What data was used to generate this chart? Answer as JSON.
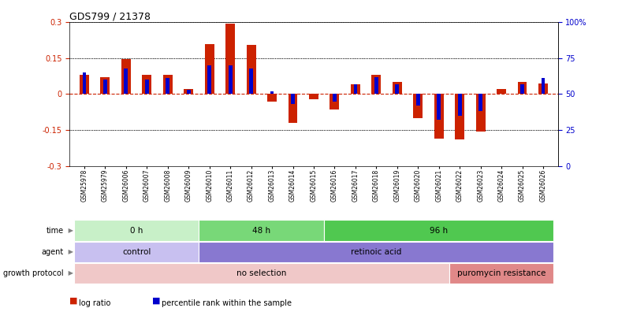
{
  "title": "GDS799 / 21378",
  "samples": [
    "GSM25978",
    "GSM25979",
    "GSM26006",
    "GSM26007",
    "GSM26008",
    "GSM26009",
    "GSM26010",
    "GSM26011",
    "GSM26012",
    "GSM26013",
    "GSM26014",
    "GSM26015",
    "GSM26016",
    "GSM26017",
    "GSM26018",
    "GSM26019",
    "GSM26020",
    "GSM26021",
    "GSM26022",
    "GSM26023",
    "GSM26024",
    "GSM26025",
    "GSM26026"
  ],
  "log_ratio": [
    0.08,
    0.07,
    0.145,
    0.08,
    0.08,
    0.02,
    0.21,
    0.295,
    0.205,
    -0.03,
    -0.12,
    -0.02,
    -0.065,
    0.04,
    0.08,
    0.05,
    -0.1,
    -0.185,
    -0.19,
    -0.155,
    0.02,
    0.05,
    0.045
  ],
  "percentile": [
    65,
    60,
    68,
    60,
    61,
    53,
    70,
    70,
    68,
    52,
    43,
    50,
    45,
    57,
    62,
    57,
    42,
    32,
    35,
    38,
    50,
    57,
    61
  ],
  "log_ratio_color": "#cc2200",
  "percentile_color": "#0000cc",
  "ylim": [
    -0.3,
    0.3
  ],
  "yticks_left": [
    -0.3,
    -0.15,
    0,
    0.15,
    0.3
  ],
  "yticks_right": [
    0,
    25,
    50,
    75,
    100
  ],
  "hlines": [
    -0.15,
    0.15
  ],
  "zero_line_color": "#cc2200",
  "time_groups": [
    {
      "label": "0 h",
      "start": 0,
      "end": 5,
      "color": "#c8f0c8"
    },
    {
      "label": "48 h",
      "start": 6,
      "end": 11,
      "color": "#78d878"
    },
    {
      "label": "96 h",
      "start": 12,
      "end": 22,
      "color": "#50c850"
    }
  ],
  "agent_groups": [
    {
      "label": "control",
      "start": 0,
      "end": 5,
      "color": "#c8c0f0"
    },
    {
      "label": "retinoic acid",
      "start": 6,
      "end": 22,
      "color": "#8878d0"
    }
  ],
  "growth_groups": [
    {
      "label": "no selection",
      "start": 0,
      "end": 17,
      "color": "#f0c8c8"
    },
    {
      "label": "puromycin resistance",
      "start": 18,
      "end": 22,
      "color": "#e08888"
    }
  ],
  "row_labels": [
    "time",
    "agent",
    "growth protocol"
  ],
  "legend_items": [
    {
      "label": "log ratio",
      "color": "#cc2200"
    },
    {
      "label": "percentile rank within the sample",
      "color": "#0000cc"
    }
  ],
  "bg_color": "#ffffff"
}
